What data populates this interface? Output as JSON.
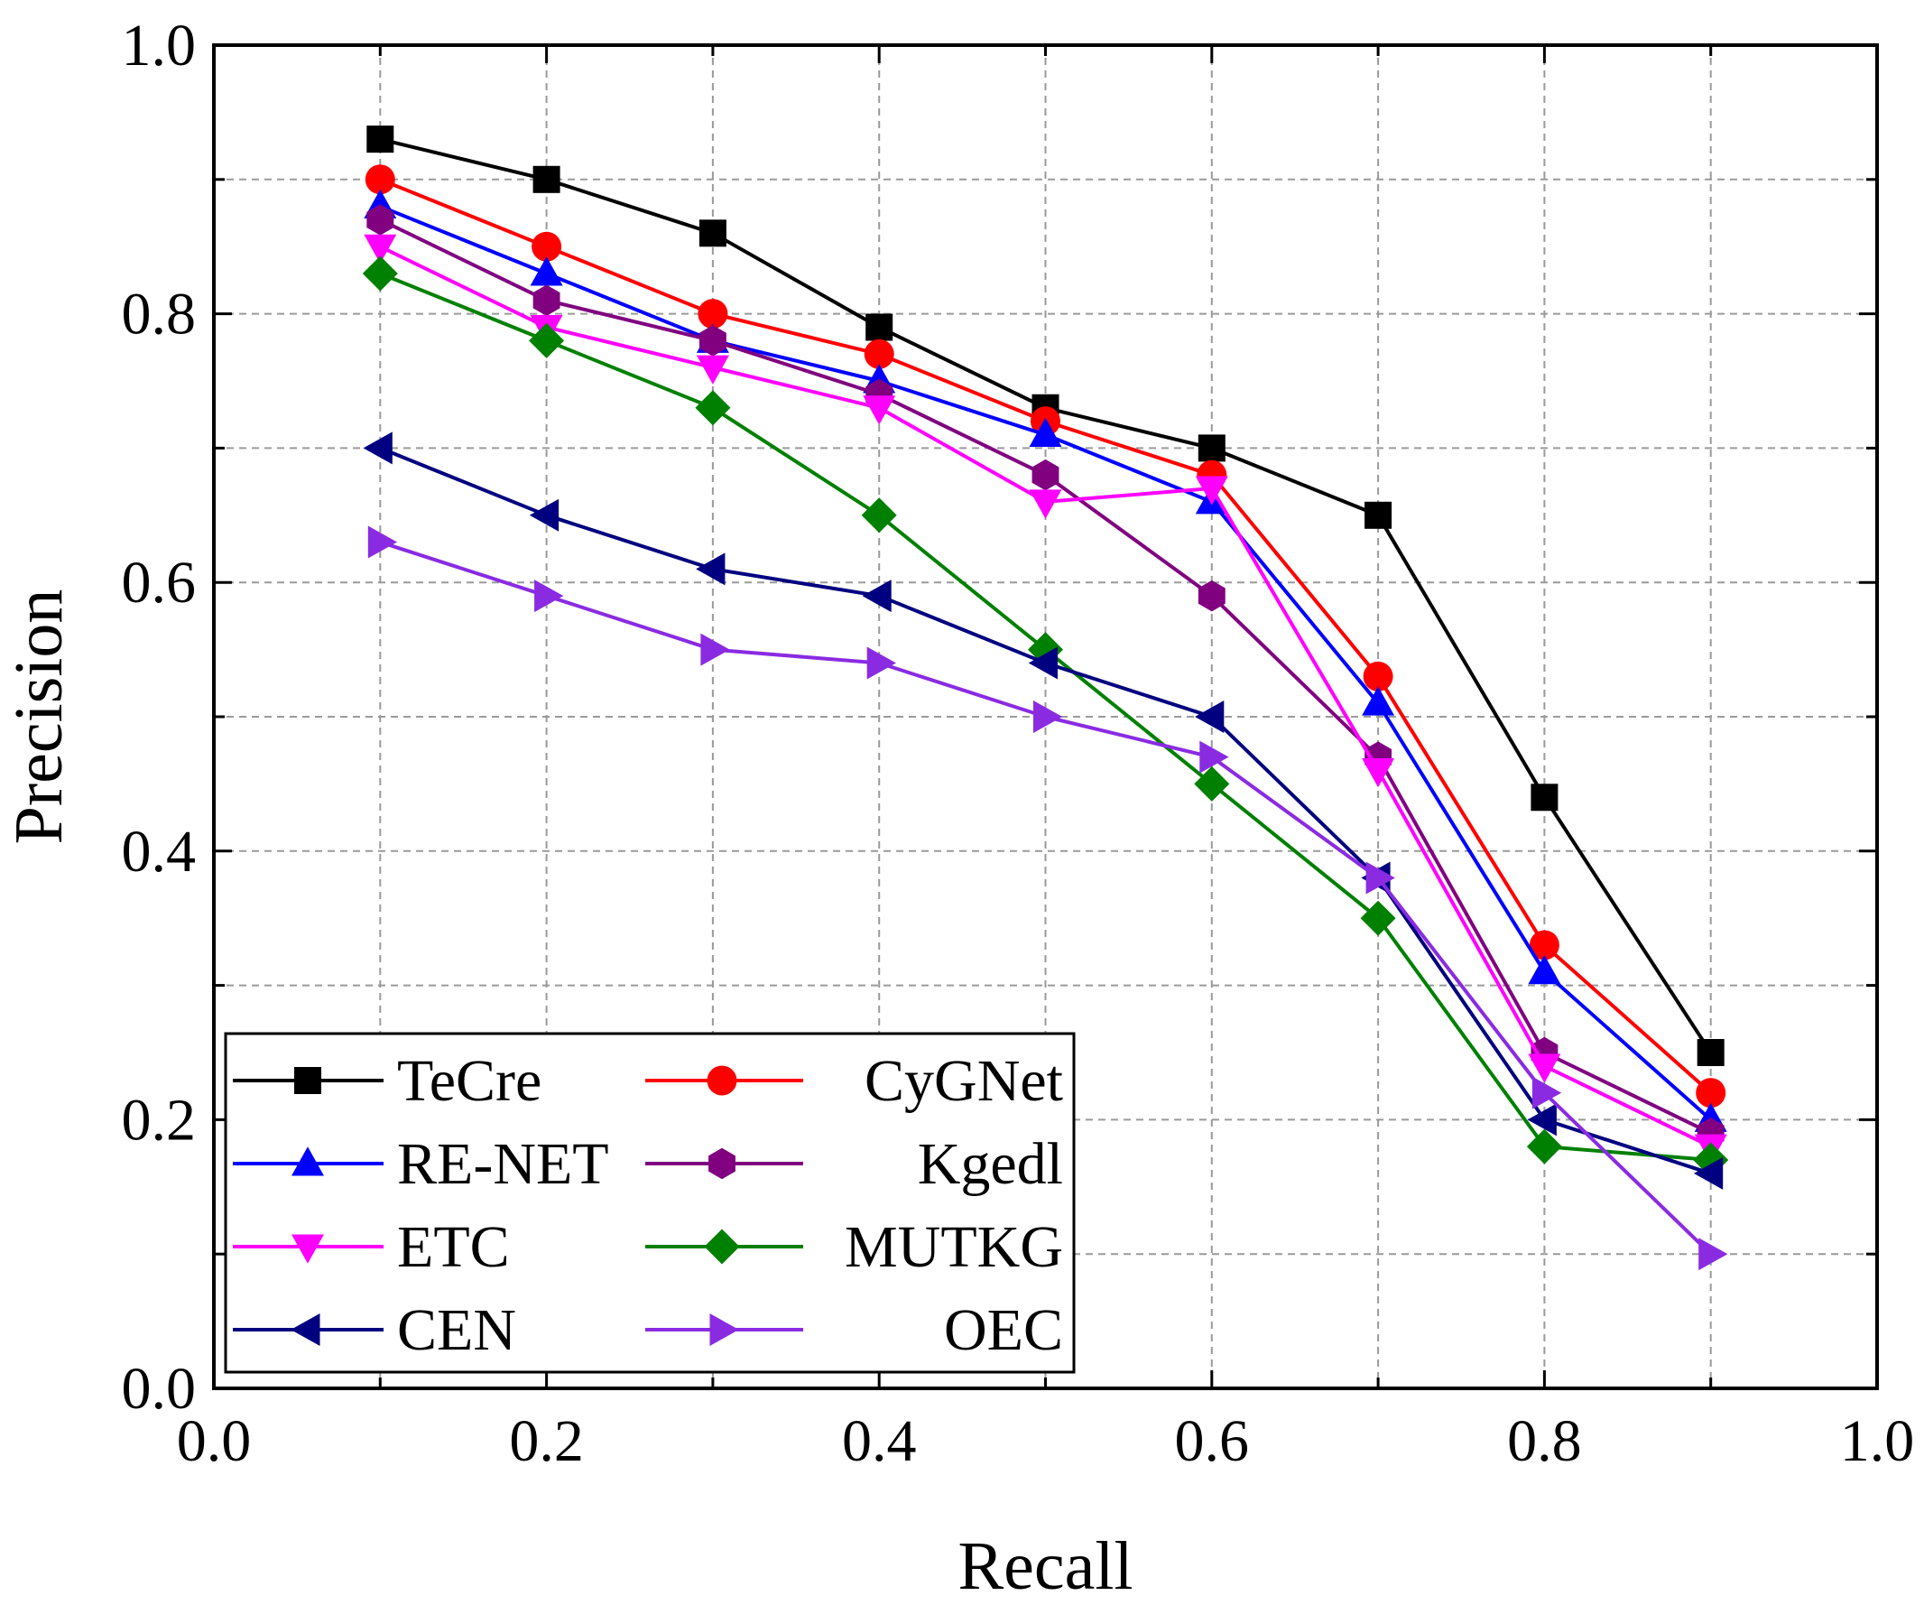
{
  "chart_data": {
    "type": "line",
    "title": "",
    "xlabel": "Recall",
    "ylabel": "Precision",
    "xlim": [
      0,
      1
    ],
    "ylim": [
      0,
      1
    ],
    "x_ticks": [
      "0.0",
      "0.2",
      "0.4",
      "0.6",
      "0.8",
      "1.0"
    ],
    "y_ticks": [
      "0.0",
      "0.2",
      "0.4",
      "0.6",
      "0.8",
      "1.0"
    ],
    "grid": true,
    "legend_position": "bottom-left",
    "x": [
      0.1,
      0.2,
      0.3,
      0.4,
      0.5,
      0.6,
      0.7,
      0.8,
      0.9
    ],
    "series": [
      {
        "name": "TeCre",
        "color": "#000000",
        "marker": "square",
        "values": [
          0.93,
          0.9,
          0.86,
          0.79,
          0.73,
          0.7,
          0.65,
          0.44,
          0.25
        ]
      },
      {
        "name": "CyGNet",
        "color": "#ff0000",
        "marker": "circle",
        "values": [
          0.9,
          0.85,
          0.8,
          0.77,
          0.72,
          0.68,
          0.53,
          0.33,
          0.22
        ]
      },
      {
        "name": "RE-NET",
        "color": "#0000ff",
        "marker": "triangle-up",
        "values": [
          0.88,
          0.83,
          0.78,
          0.75,
          0.71,
          0.66,
          0.51,
          0.31,
          0.2
        ]
      },
      {
        "name": "Kgedl",
        "color": "#800080",
        "marker": "hexagon",
        "values": [
          0.87,
          0.81,
          0.78,
          0.74,
          0.68,
          0.59,
          0.47,
          0.25,
          0.19
        ]
      },
      {
        "name": "ETC",
        "color": "#ff00ff",
        "marker": "triangle-down",
        "values": [
          0.85,
          0.79,
          0.76,
          0.73,
          0.66,
          0.67,
          0.46,
          0.24,
          0.18
        ]
      },
      {
        "name": "MUTKG",
        "color": "#008000",
        "marker": "diamond",
        "values": [
          0.83,
          0.78,
          0.73,
          0.65,
          0.55,
          0.45,
          0.35,
          0.18,
          0.17
        ]
      },
      {
        "name": "CEN",
        "color": "#000080",
        "marker": "triangle-left",
        "values": [
          0.7,
          0.65,
          0.61,
          0.59,
          0.54,
          0.5,
          0.38,
          0.2,
          0.16
        ]
      },
      {
        "name": "OEC",
        "color": "#8a2be2",
        "marker": "triangle-right",
        "values": [
          0.63,
          0.59,
          0.55,
          0.54,
          0.5,
          0.47,
          0.38,
          0.22,
          0.1
        ]
      }
    ]
  }
}
